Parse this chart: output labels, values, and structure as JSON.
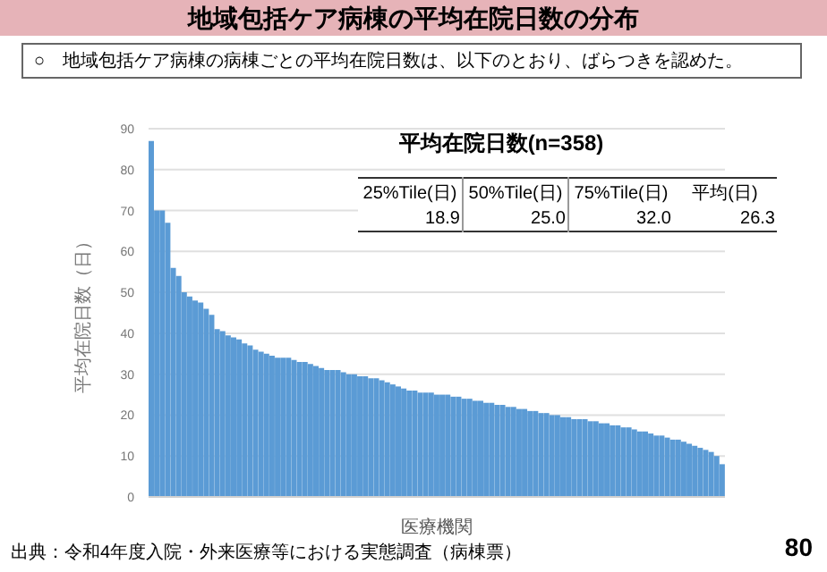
{
  "chart_data": {
    "type": "bar",
    "title": "地域包括ケア病棟の平均在院日数の分布",
    "subtitle": "○　地域包括ケア病棟の病棟ごとの平均在院日数は、以下のとおり、ばらつきを認めた。",
    "xlabel": "医療機関",
    "ylabel": "平均在院日数（日）",
    "annotations": [
      "平均在院日数(n=358)",
      "25%Tile(日)",
      "50%Tile(日)",
      "75%Tile(日)",
      "平均(日)",
      "18.9",
      "25.0",
      "32.0",
      "26.3",
      "出典：令和4年度入院・外来医療等における実態調査（病棟票）",
      "80"
    ],
    "categories": [
      null,
      null,
      null,
      null,
      null,
      null,
      null,
      null,
      null,
      null,
      null,
      null,
      null,
      null,
      null,
      null,
      null,
      null,
      null,
      null,
      null,
      null,
      null,
      null,
      null,
      null,
      null,
      null,
      null,
      null,
      null,
      null,
      null,
      null,
      null,
      null,
      null,
      null,
      null,
      null,
      null,
      null,
      null,
      null,
      null,
      null,
      null,
      null,
      null,
      null,
      null,
      null,
      null,
      null,
      null,
      null,
      null,
      null,
      null,
      null,
      null,
      null,
      null,
      null,
      null,
      null,
      null,
      null,
      null,
      null,
      null,
      null,
      null,
      null,
      null,
      null,
      null,
      null,
      null,
      null,
      null,
      null,
      null,
      null,
      null,
      null,
      null,
      null,
      null,
      null,
      null,
      null,
      null,
      null,
      null,
      null,
      null,
      null,
      null,
      null,
      null,
      null,
      null,
      null,
      null
    ],
    "values": [
      87,
      70,
      70,
      67,
      56,
      54,
      50,
      49,
      48,
      47.5,
      46,
      44.5,
      41,
      40.5,
      39.5,
      39,
      38.5,
      37.5,
      37,
      36,
      35.5,
      35,
      34.5,
      34,
      34,
      34,
      33.5,
      33,
      33,
      32.5,
      32,
      31.5,
      31,
      31,
      31,
      30.5,
      30,
      30,
      29.5,
      29.5,
      29,
      29,
      28.5,
      28,
      27.5,
      27,
      26.5,
      26,
      26,
      25.5,
      25.5,
      25.5,
      25,
      25,
      25,
      24.5,
      24.5,
      24,
      24,
      23.5,
      23.5,
      23,
      23,
      22.5,
      22.5,
      22,
      22,
      21.5,
      21.5,
      21,
      21,
      20.5,
      20.5,
      20,
      20,
      19.5,
      19.5,
      19,
      19,
      19,
      18.5,
      18.5,
      18,
      18,
      17.5,
      17.5,
      17,
      17,
      16.5,
      16,
      16,
      15.5,
      15,
      15,
      14.5,
      14,
      14,
      13.5,
      13,
      12.5,
      12,
      11.5,
      11,
      10,
      8
    ],
    "color": "#5b9bd5",
    "ylim": [
      0,
      90
    ],
    "yticks": [
      0,
      10,
      20,
      30,
      40,
      50,
      60,
      70,
      80,
      90
    ],
    "grid": "y"
  }
}
